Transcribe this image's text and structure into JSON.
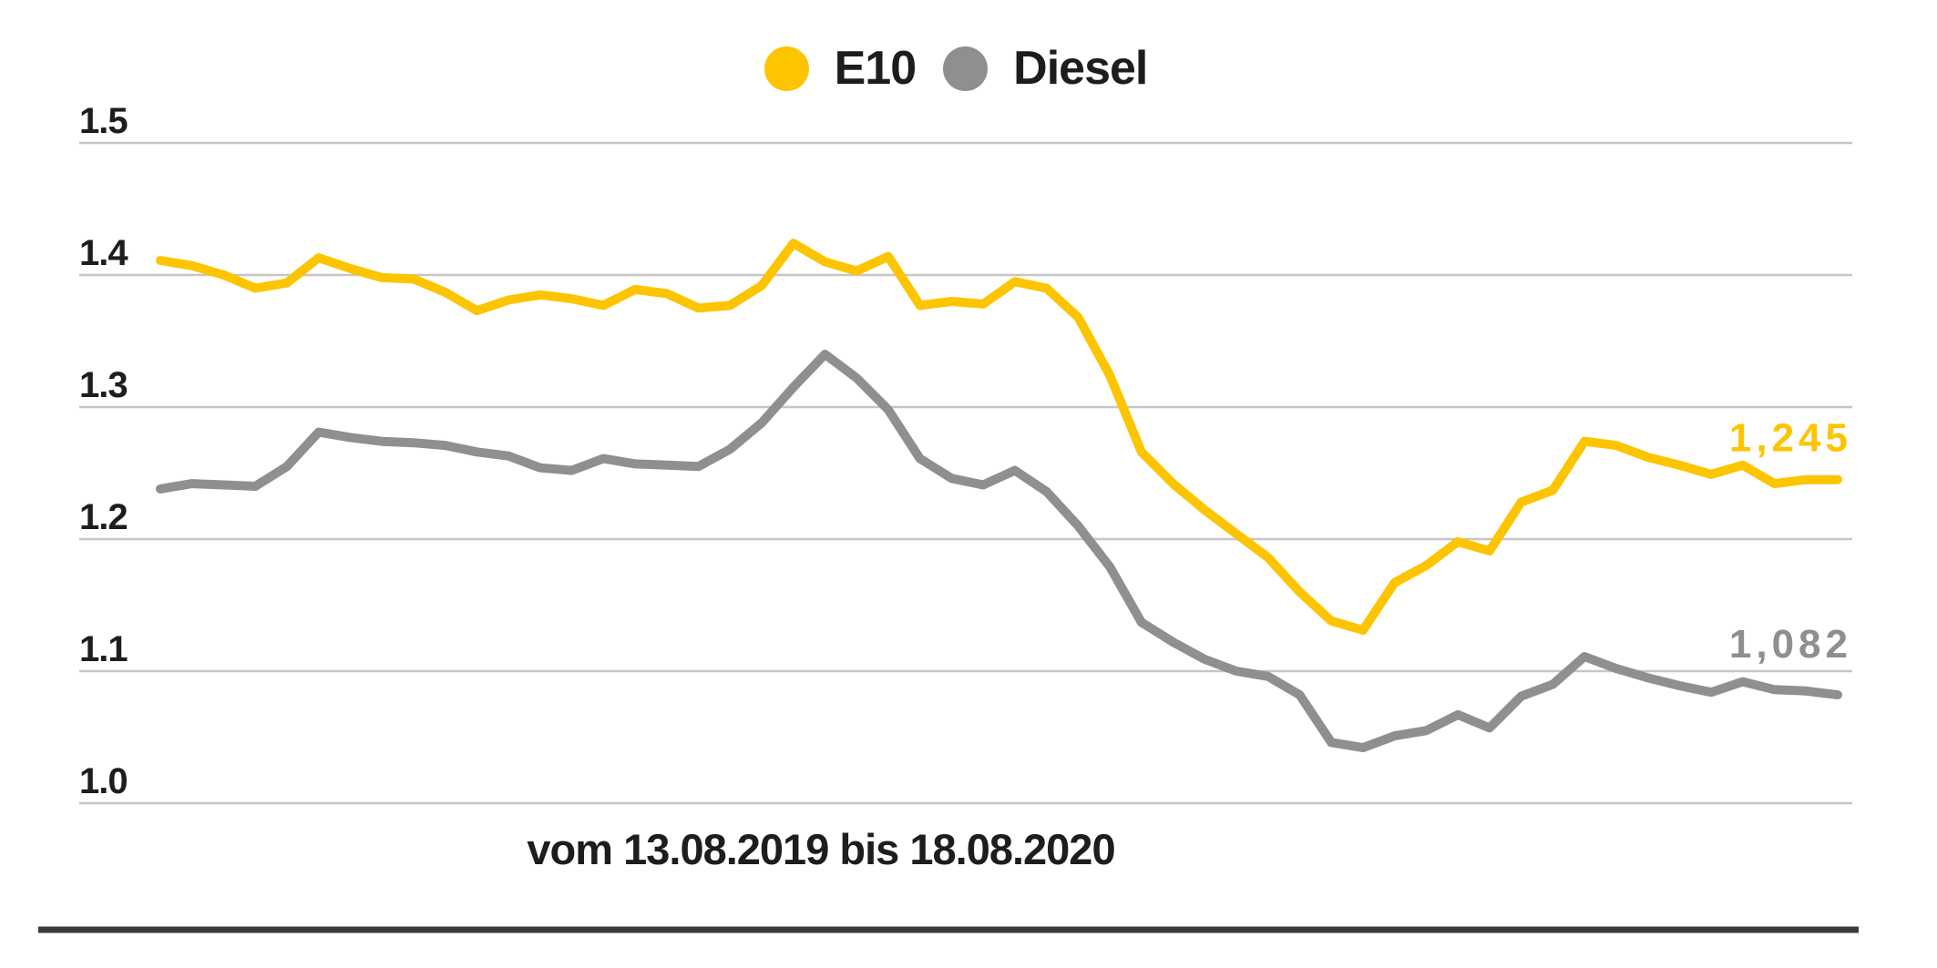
{
  "colors": {
    "e10": "#FDC400",
    "diesel": "#8F8F8F",
    "grid": "#C6C6C6",
    "bottom_rule": "#3A3A3C",
    "text": "#1D1D1B",
    "background": "#FFFFFF"
  },
  "legend": {
    "items": [
      {
        "label": "E10",
        "color": "#FDC400"
      },
      {
        "label": "Diesel",
        "color": "#8F8F8F"
      }
    ]
  },
  "caption": {
    "text": "vom 13.08.2019 bis 18.08.2020"
  },
  "chart_data": {
    "type": "line",
    "title": "",
    "xlabel": "vom 13.08.2019 bis 18.08.2020",
    "ylabel": "",
    "x_start_date": "13.08.2019",
    "x_end_date": "18.08.2020",
    "x_sampling": "weekly",
    "grid": "horizontal",
    "legend_position": "top-center",
    "ylim": [
      1.0,
      1.5
    ],
    "yticks": [
      {
        "label": "1.5",
        "value": 1.5
      },
      {
        "label": "1.4",
        "value": 1.4
      },
      {
        "label": "1.3",
        "value": 1.3
      },
      {
        "label": "1.2",
        "value": 1.2
      },
      {
        "label": "1.1",
        "value": 1.1
      },
      {
        "label": "1.0",
        "value": 1.0
      }
    ],
    "series": [
      {
        "name": "E10",
        "color": "#FDC400",
        "end_label": "1,245",
        "last_value": 1.245,
        "values": [
          1.411,
          1.407,
          1.4,
          1.39,
          1.394,
          1.413,
          1.405,
          1.398,
          1.397,
          1.387,
          1.373,
          1.381,
          1.385,
          1.382,
          1.377,
          1.389,
          1.386,
          1.375,
          1.377,
          1.392,
          1.424,
          1.41,
          1.403,
          1.414,
          1.377,
          1.38,
          1.378,
          1.395,
          1.39,
          1.368,
          1.324,
          1.266,
          1.242,
          1.222,
          1.204,
          1.186,
          1.16,
          1.138,
          1.131,
          1.167,
          1.18,
          1.198,
          1.191,
          1.228,
          1.237,
          1.274,
          1.271,
          1.262,
          1.256,
          1.249,
          1.256,
          1.242,
          1.245,
          1.245
        ]
      },
      {
        "name": "Diesel",
        "color": "#8F8F8F",
        "end_label": "1,082",
        "last_value": 1.082,
        "values": [
          1.238,
          1.242,
          1.241,
          1.24,
          1.255,
          1.281,
          1.277,
          1.274,
          1.273,
          1.271,
          1.266,
          1.263,
          1.254,
          1.252,
          1.261,
          1.257,
          1.256,
          1.255,
          1.268,
          1.288,
          1.315,
          1.34,
          1.322,
          1.298,
          1.261,
          1.246,
          1.241,
          1.252,
          1.236,
          1.21,
          1.179,
          1.137,
          1.122,
          1.109,
          1.1,
          1.096,
          1.082,
          1.046,
          1.042,
          1.051,
          1.055,
          1.067,
          1.057,
          1.081,
          1.09,
          1.111,
          1.102,
          1.095,
          1.089,
          1.084,
          1.092,
          1.086,
          1.085,
          1.082
        ]
      }
    ]
  }
}
